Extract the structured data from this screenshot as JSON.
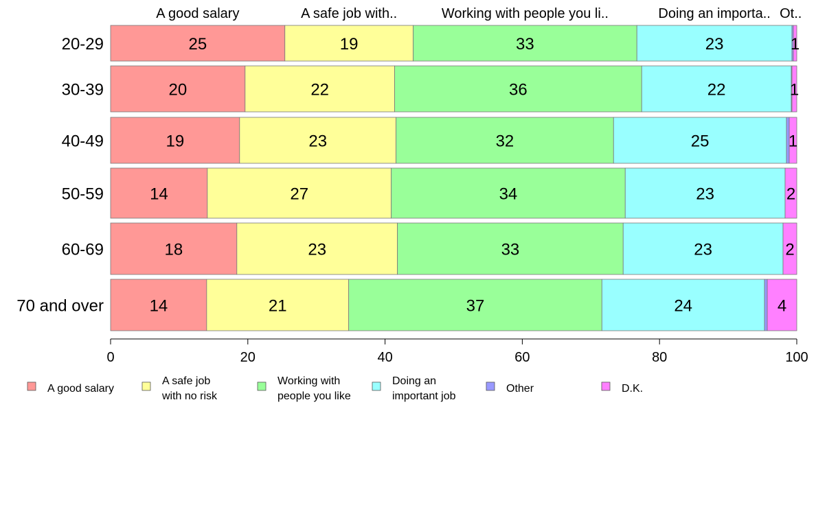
{
  "chart_data": {
    "type": "bar",
    "orientation": "horizontal",
    "stacked": true,
    "categories": [
      "20-29",
      "30-39",
      "40-49",
      "50-59",
      "60-69",
      "70 and over"
    ],
    "xlim": [
      0,
      100
    ],
    "xticks": [
      0,
      20,
      40,
      60,
      80,
      100
    ],
    "top_labels": [
      "A good salary",
      "A safe job with..",
      "Working with people you li..",
      "Doing an importa..",
      "Ot..."
    ],
    "series": [
      {
        "name": "A good salary",
        "legend": [
          "A good salary"
        ],
        "color": "#ff9896",
        "values": [
          25.4,
          19.6,
          18.8,
          14.1,
          18.4,
          14.0
        ],
        "labels": [
          "25",
          "20",
          "19",
          "14",
          "18",
          "14"
        ]
      },
      {
        "name": "A safe job with no risk",
        "legend": [
          "A safe job",
          "with no risk"
        ],
        "color": "#ffff99",
        "values": [
          18.7,
          21.8,
          22.8,
          26.8,
          23.4,
          20.7
        ],
        "labels": [
          "19",
          "22",
          "23",
          "27",
          "23",
          "21"
        ]
      },
      {
        "name": "Working with people you like",
        "legend": [
          "Working with",
          "people you like"
        ],
        "color": "#99ff99",
        "values": [
          32.6,
          36.0,
          31.7,
          34.1,
          32.9,
          36.9
        ],
        "labels": [
          "33",
          "36",
          "32",
          "34",
          "33",
          "37"
        ]
      },
      {
        "name": "Doing an important job",
        "legend": [
          "Doing an",
          "important job"
        ],
        "color": "#99ffff",
        "values": [
          22.6,
          21.8,
          25.2,
          23.3,
          23.3,
          23.7
        ],
        "labels": [
          "23",
          "22",
          "25",
          "23",
          "23",
          "24"
        ]
      },
      {
        "name": "Other",
        "legend": [
          "Other"
        ],
        "color": "#9999ff",
        "values": [
          0.2,
          0.1,
          0.4,
          0.0,
          0.0,
          0.4
        ],
        "labels": [
          "",
          "",
          "",
          "",
          "",
          ""
        ]
      },
      {
        "name": "D.K.",
        "legend": [
          "D.K."
        ],
        "color": "#ff80ff",
        "values": [
          0.5,
          0.7,
          1.1,
          1.7,
          2.0,
          4.3
        ],
        "labels": [
          "1",
          "1",
          "1",
          "2",
          "2",
          "4"
        ]
      }
    ],
    "grid": false,
    "legend_position": "bottom"
  }
}
